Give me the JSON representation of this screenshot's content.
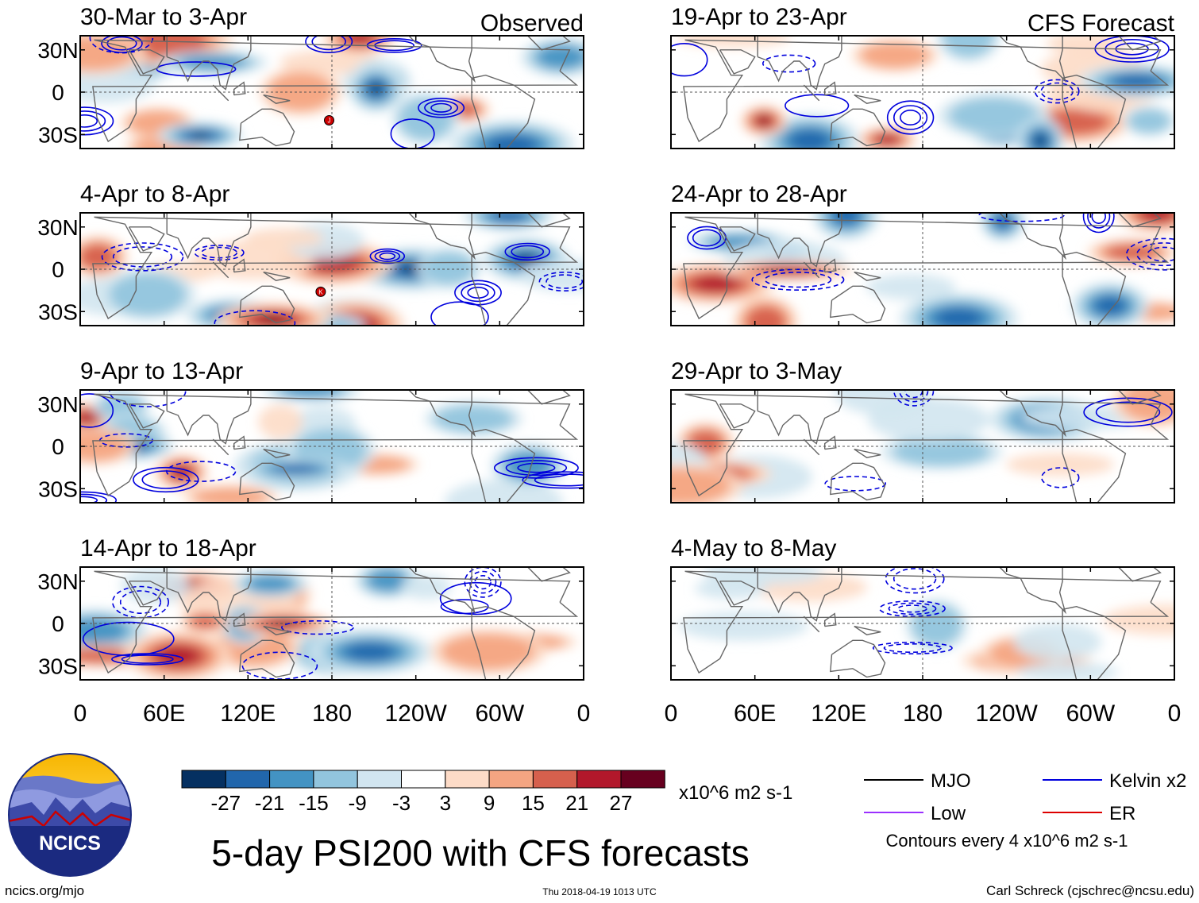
{
  "chart_data": {
    "type": "heatmap",
    "title": "5-day PSI200 with CFS forecasts",
    "units": "x10^6 m2 s-1",
    "columns": [
      {
        "label": "Observed",
        "panels": [
          {
            "period": "30-Mar to 3-Apr",
            "storms": [
              {
                "lon": 178,
                "lat": -20,
                "id": "J"
              }
            ]
          },
          {
            "period": "4-Apr to 8-Apr",
            "storms": [
              {
                "lon": 172,
                "lat": -16,
                "id": "K"
              }
            ]
          },
          {
            "period": "9-Apr to 13-Apr",
            "storms": []
          },
          {
            "period": "14-Apr to 18-Apr",
            "storms": []
          }
        ]
      },
      {
        "label": "CFS Forecast",
        "panels": [
          {
            "period": "19-Apr to 23-Apr",
            "storms": []
          },
          {
            "period": "24-Apr to 28-Apr",
            "storms": []
          },
          {
            "period": "29-Apr to 3-May",
            "storms": []
          },
          {
            "period": "4-May to 8-May",
            "storms": []
          }
        ]
      }
    ],
    "x_ticks": [
      "0",
      "60E",
      "120E",
      "180",
      "120W",
      "60W",
      "0"
    ],
    "x_tick_lons": [
      0,
      60,
      120,
      180,
      240,
      300,
      360
    ],
    "y_ticks": [
      "30N",
      "0",
      "30S"
    ],
    "y_tick_lats": [
      30,
      0,
      -30
    ],
    "xlim": [
      0,
      360
    ],
    "ylim": [
      -40,
      40
    ],
    "colorbar": {
      "levels": [
        "-27",
        "-21",
        "-15",
        "-9",
        "-3",
        "3",
        "9",
        "15",
        "21",
        "27"
      ],
      "colors": [
        "#053061",
        "#2166ac",
        "#4393c3",
        "#92c5de",
        "#d1e5f0",
        "#ffffff",
        "#fddbc7",
        "#f4a582",
        "#d6604d",
        "#b2182b",
        "#67001f"
      ]
    },
    "legend": [
      {
        "label": "MJO",
        "color": "#000000"
      },
      {
        "label": "Kelvin x2",
        "color": "#0000dd"
      },
      {
        "label": "Low",
        "color": "#9b30ff"
      },
      {
        "label": "ER",
        "color": "#dd0000"
      }
    ],
    "contour_note": "Contours every 4 x10^6 m2 s-1"
  },
  "logo": {
    "text": "NCICS"
  },
  "footer": {
    "url": "ncics.org/mjo",
    "timestamp": "Thu 2018-04-19 1013 UTC",
    "credit": "Carl Schreck (cjschrec@ncsu.edu)"
  }
}
